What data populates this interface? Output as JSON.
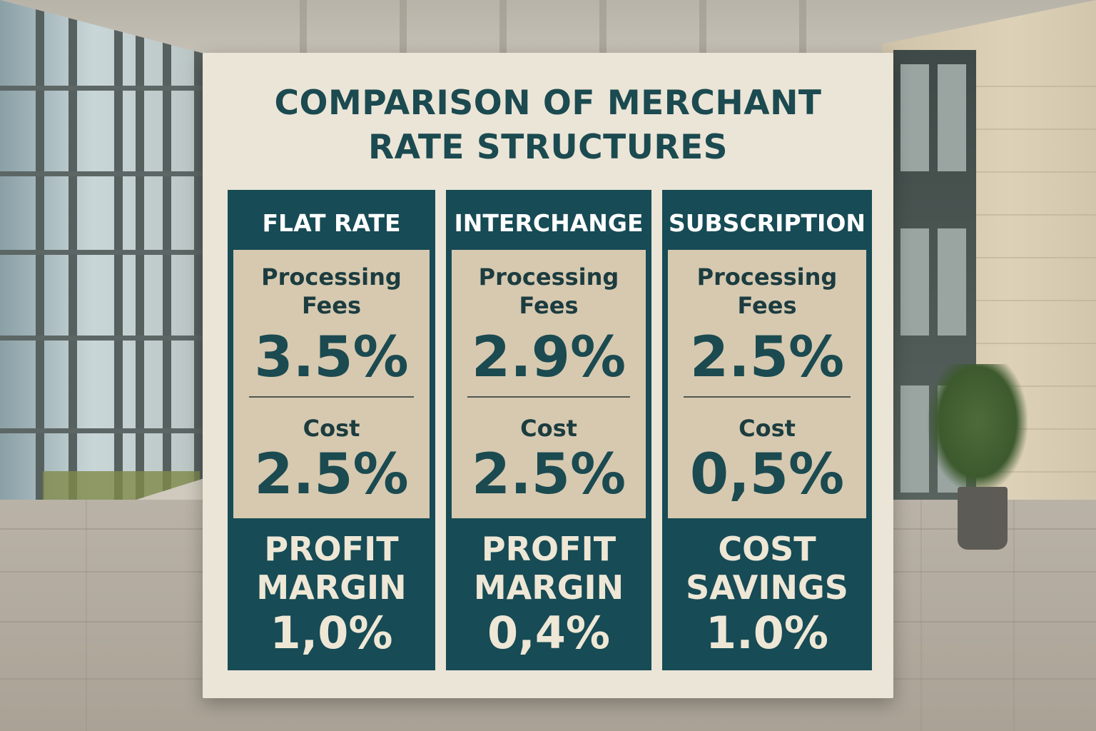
{
  "board": {
    "title_line1": "COMPARISON OF MERCHANT",
    "title_line2": "RATE STRUCTURES",
    "columns": [
      {
        "header": "FLAT RATE",
        "fee_label_line1": "Processing",
        "fee_label_line2": "Fees",
        "fee_value": "3.5%",
        "cost_label": "Cost",
        "cost_value": "2.5%",
        "footer_line1": "PROFIT",
        "footer_line2": "MARGIN",
        "footer_value": "1,0%"
      },
      {
        "header": "INTERCHANGE",
        "fee_label_line1": "Processing",
        "fee_label_line2": "Fees",
        "fee_value": "2.9%",
        "cost_label": "Cost",
        "cost_value": "2.5%",
        "footer_line1": "PROFIT",
        "footer_line2": "MARGIN",
        "footer_value": "0,4%"
      },
      {
        "header": "SUBSCRIPTION",
        "fee_label_line1": "Processing",
        "fee_label_line2": "Fees",
        "fee_value": "2.5%",
        "cost_label": "Cost",
        "cost_value": "0,5%",
        "footer_line1": "COST",
        "footer_line2": "SAVINGS",
        "footer_value": "1.0%"
      }
    ]
  },
  "colors": {
    "teal": "#174b55",
    "panel": "#d6c9b0",
    "board": "#ebe5d7",
    "footer_text": "#eee7d6"
  }
}
